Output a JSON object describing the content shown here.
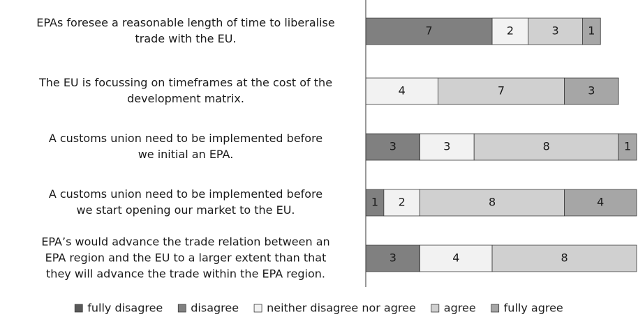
{
  "chart_data": {
    "type": "stacked-bar-horizontal",
    "categories": [
      [
        "EPAs foresee a reasonable length of time to liberalise",
        "trade with the EU."
      ],
      [
        "The EU is focussing on timeframes at the cost of the",
        "development matrix."
      ],
      [
        "A customs union need to be implemented before",
        "we initial an EPA."
      ],
      [
        "A customs union need to be implemented before",
        "we start opening our market to the EU."
      ],
      [
        "EPA’s would advance the trade relation between an",
        "EPA region and the EU to a larger extent than that",
        "they will advance the trade within the EPA region."
      ]
    ],
    "series": [
      {
        "name": "fully disagree",
        "color": "#595959",
        "values": [
          0,
          0,
          0,
          0,
          0
        ]
      },
      {
        "name": "disagree",
        "color": "#808080",
        "values": [
          7,
          0,
          3,
          1,
          3
        ]
      },
      {
        "name": "neither disagree nor agree",
        "color": "#f2f2f2",
        "values": [
          2,
          4,
          3,
          2,
          4
        ]
      },
      {
        "name": "agree",
        "color": "#d0d0d0",
        "values": [
          3,
          7,
          8,
          8,
          8
        ]
      },
      {
        "name": "fully agree",
        "color": "#a6a6a6",
        "values": [
          1,
          3,
          1,
          4,
          0
        ]
      }
    ],
    "xlim": [
      0,
      15
    ],
    "legend": "bottom"
  }
}
